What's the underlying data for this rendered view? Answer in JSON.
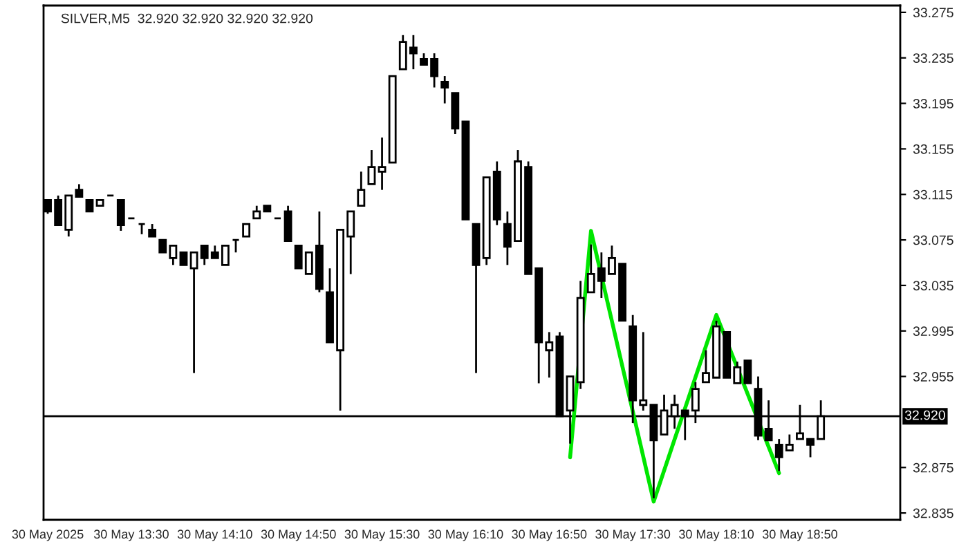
{
  "chart_data": {
    "type": "candlestick",
    "title": "SILVER,M5  32.920 32.920 32.920 32.920",
    "x": [
      "2025-05-30T12:50",
      "2025-05-30T12:55",
      "2025-05-30T13:00",
      "2025-05-30T13:05",
      "2025-05-30T13:10",
      "2025-05-30T13:15",
      "2025-05-30T13:20",
      "2025-05-30T13:25",
      "2025-05-30T13:30",
      "2025-05-30T13:35",
      "2025-05-30T13:40",
      "2025-05-30T13:45",
      "2025-05-30T13:50",
      "2025-05-30T13:55",
      "2025-05-30T14:00",
      "2025-05-30T14:05",
      "2025-05-30T14:10",
      "2025-05-30T14:15",
      "2025-05-30T14:20",
      "2025-05-30T14:25",
      "2025-05-30T14:30",
      "2025-05-30T14:35",
      "2025-05-30T14:40",
      "2025-05-30T14:45",
      "2025-05-30T14:50",
      "2025-05-30T14:55",
      "2025-05-30T15:00",
      "2025-05-30T15:05",
      "2025-05-30T15:10",
      "2025-05-30T15:15",
      "2025-05-30T15:20",
      "2025-05-30T15:25",
      "2025-05-30T15:30",
      "2025-05-30T15:35",
      "2025-05-30T15:40",
      "2025-05-30T15:45",
      "2025-05-30T15:50",
      "2025-05-30T15:55",
      "2025-05-30T16:00",
      "2025-05-30T16:05",
      "2025-05-30T16:10",
      "2025-05-30T16:15",
      "2025-05-30T16:20",
      "2025-05-30T16:25",
      "2025-05-30T16:30",
      "2025-05-30T16:35",
      "2025-05-30T16:40",
      "2025-05-30T16:45",
      "2025-05-30T16:50",
      "2025-05-30T16:55",
      "2025-05-30T17:00",
      "2025-05-30T17:05",
      "2025-05-30T17:10",
      "2025-05-30T17:15",
      "2025-05-30T17:20",
      "2025-05-30T17:25",
      "2025-05-30T17:30",
      "2025-05-30T17:35",
      "2025-05-30T17:40",
      "2025-05-30T17:45",
      "2025-05-30T17:50",
      "2025-05-30T17:55",
      "2025-05-30T18:00",
      "2025-05-30T18:05",
      "2025-05-30T18:10",
      "2025-05-30T18:15",
      "2025-05-30T18:20",
      "2025-05-30T18:25",
      "2025-05-30T18:30",
      "2025-05-30T18:35",
      "2025-05-30T18:40",
      "2025-05-30T18:45",
      "2025-05-30T18:50",
      "2025-05-30T18:55",
      "2025-05-30T19:00"
    ],
    "ohlc": [
      [
        33.11,
        33.11,
        33.098,
        33.1
      ],
      [
        33.11,
        33.114,
        33.088,
        33.088
      ],
      [
        33.084,
        33.114,
        33.078,
        33.114
      ],
      [
        33.119,
        33.124,
        33.113,
        33.113
      ],
      [
        33.11,
        33.11,
        33.1,
        33.1
      ],
      [
        33.105,
        33.11,
        33.105,
        33.11
      ],
      [
        33.114,
        33.114,
        33.114,
        33.114
      ],
      [
        33.11,
        33.11,
        33.083,
        33.088
      ],
      [
        33.094,
        33.094,
        33.094,
        33.094
      ],
      [
        33.089,
        33.089,
        33.08,
        33.089
      ],
      [
        33.084,
        33.089,
        33.078,
        33.078
      ],
      [
        33.075,
        33.075,
        33.064,
        33.064
      ],
      [
        33.059,
        33.07,
        33.053,
        33.07
      ],
      [
        33.064,
        33.064,
        33.053,
        33.053
      ],
      [
        33.05,
        33.064,
        32.958,
        33.064
      ],
      [
        33.07,
        33.07,
        33.053,
        33.059
      ],
      [
        33.064,
        33.07,
        33.059,
        33.059
      ],
      [
        33.053,
        33.07,
        33.053,
        33.07
      ],
      [
        33.075,
        33.075,
        33.064,
        33.075
      ],
      [
        33.078,
        33.089,
        33.078,
        33.089
      ],
      [
        33.094,
        33.105,
        33.094,
        33.1
      ],
      [
        33.105,
        33.105,
        33.1,
        33.1
      ],
      [
        33.094,
        33.094,
        33.094,
        33.094
      ],
      [
        33.1,
        33.105,
        33.074,
        33.074
      ],
      [
        33.07,
        33.07,
        33.05,
        33.05
      ],
      [
        33.045,
        33.064,
        33.045,
        33.064
      ],
      [
        33.07,
        33.1,
        33.029,
        33.032
      ],
      [
        33.029,
        33.05,
        32.985,
        32.985
      ],
      [
        32.978,
        33.084,
        32.925,
        33.084
      ],
      [
        33.078,
        33.1,
        33.045,
        33.1
      ],
      [
        33.105,
        33.135,
        33.105,
        33.119
      ],
      [
        33.124,
        33.154,
        33.124,
        33.139
      ],
      [
        33.135,
        33.165,
        33.119,
        33.139
      ],
      [
        33.143,
        33.219,
        33.143,
        33.219
      ],
      [
        33.225,
        33.255,
        33.225,
        33.249
      ],
      [
        33.244,
        33.255,
        33.225,
        33.239
      ],
      [
        33.234,
        33.239,
        33.229,
        33.229
      ],
      [
        33.234,
        33.239,
        33.209,
        33.219
      ],
      [
        33.214,
        33.219,
        33.195,
        33.209
      ],
      [
        33.204,
        33.204,
        33.168,
        33.173
      ],
      [
        33.179,
        33.179,
        33.093,
        33.093
      ],
      [
        33.089,
        33.089,
        32.958,
        33.053
      ],
      [
        33.059,
        33.13,
        33.053,
        33.13
      ],
      [
        33.135,
        33.144,
        33.088,
        33.093
      ],
      [
        33.089,
        33.1,
        33.053,
        33.069
      ],
      [
        33.074,
        33.154,
        33.074,
        33.144
      ],
      [
        33.139,
        33.144,
        33.045,
        33.045
      ],
      [
        33.05,
        33.05,
        32.949,
        32.985
      ],
      [
        32.978,
        32.994,
        32.954,
        32.985
      ],
      [
        32.99,
        32.994,
        32.92,
        32.92
      ],
      [
        32.925,
        32.955,
        32.896,
        32.955
      ],
      [
        32.95,
        33.039,
        32.944,
        33.024
      ],
      [
        33.029,
        33.071,
        33.029,
        33.045
      ],
      [
        33.05,
        33.064,
        33.024,
        33.039
      ],
      [
        33.045,
        33.07,
        33.045,
        33.059
      ],
      [
        33.054,
        33.054,
        33.004,
        33.004
      ],
      [
        32.999,
        33.009,
        32.914,
        32.934
      ],
      [
        32.93,
        32.994,
        32.925,
        32.934
      ],
      [
        32.93,
        32.93,
        32.848,
        32.899
      ],
      [
        32.904,
        32.939,
        32.904,
        32.925
      ],
      [
        32.92,
        32.939,
        32.909,
        32.93
      ],
      [
        32.925,
        32.925,
        32.899,
        32.92
      ],
      [
        32.925,
        32.95,
        32.914,
        32.944
      ],
      [
        32.95,
        32.978,
        32.95,
        32.958
      ],
      [
        32.954,
        33.004,
        32.954,
        32.999
      ],
      [
        32.994,
        32.994,
        32.954,
        32.954
      ],
      [
        32.949,
        32.968,
        32.949,
        32.963
      ],
      [
        32.969,
        32.969,
        32.949,
        32.949
      ],
      [
        32.944,
        32.955,
        32.899,
        32.903
      ],
      [
        32.909,
        32.934,
        32.899,
        32.899
      ],
      [
        32.895,
        32.9,
        32.872,
        32.884
      ],
      [
        32.89,
        32.904,
        32.89,
        32.895
      ],
      [
        32.9,
        32.93,
        32.9,
        32.905
      ],
      [
        32.9,
        32.9,
        32.884,
        32.895
      ],
      [
        32.9,
        32.934,
        32.9,
        32.92
      ]
    ],
    "series": [
      {
        "type": "line",
        "color": "#00e600",
        "x": [
          "2025-05-30T17:00",
          "2025-05-30T17:10",
          "2025-05-30T17:40",
          "2025-05-30T18:10",
          "2025-05-30T18:40"
        ],
        "values": [
          32.884,
          33.083,
          32.845,
          33.009,
          32.87
        ]
      }
    ],
    "ref_lines": [
      {
        "axis": "y",
        "value": 32.92,
        "label": "32.920",
        "color": "#000000"
      }
    ],
    "xlim": [
      "2025-05-30T12:48",
      "2025-05-30T19:38"
    ],
    "xticks": [
      {
        "value": "2025-05-30T12:50",
        "label": "30 May 2025"
      },
      {
        "value": "2025-05-30T13:30",
        "label": "30 May 13:30"
      },
      {
        "value": "2025-05-30T14:10",
        "label": "30 May 14:10"
      },
      {
        "value": "2025-05-30T14:50",
        "label": "30 May 14:50"
      },
      {
        "value": "2025-05-30T15:30",
        "label": "30 May 15:30"
      },
      {
        "value": "2025-05-30T16:10",
        "label": "30 May 16:10"
      },
      {
        "value": "2025-05-30T16:50",
        "label": "30 May 16:50"
      },
      {
        "value": "2025-05-30T17:30",
        "label": "30 May 17:30"
      },
      {
        "value": "2025-05-30T18:10",
        "label": "30 May 18:10"
      },
      {
        "value": "2025-05-30T18:50",
        "label": "30 May 18:50"
      }
    ],
    "ylim": [
      32.829,
      33.281
    ],
    "yticks": [
      {
        "value": 33.275,
        "label": "33.275"
      },
      {
        "value": 33.235,
        "label": "33.235"
      },
      {
        "value": 33.195,
        "label": "33.195"
      },
      {
        "value": 33.155,
        "label": "33.155"
      },
      {
        "value": 33.115,
        "label": "33.115"
      },
      {
        "value": 33.075,
        "label": "33.075"
      },
      {
        "value": 33.035,
        "label": "33.035"
      },
      {
        "value": 32.995,
        "label": "32.995"
      },
      {
        "value": 32.955,
        "label": "32.955"
      },
      {
        "value": 32.875,
        "label": "32.875"
      },
      {
        "value": 32.835,
        "label": "32.835"
      }
    ],
    "grid": false
  }
}
